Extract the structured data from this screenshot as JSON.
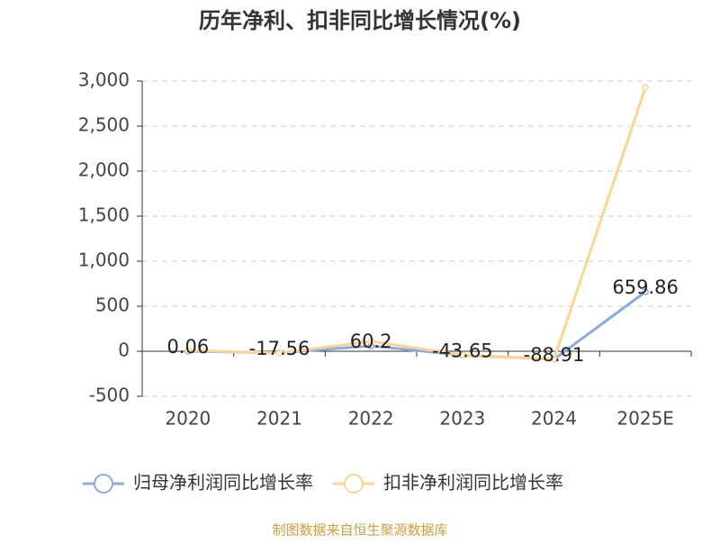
{
  "chart_data": {
    "type": "line",
    "title": "历年净利、扣非同比增长情况(%)",
    "categories": [
      "2020",
      "2021",
      "2022",
      "2023",
      "2024",
      "2025E"
    ],
    "series": [
      {
        "name": "归母净利润同比增长率",
        "color": "#8eaad8",
        "values": [
          0.06,
          -17.56,
          60.2,
          -43.65,
          -88.91,
          659.86
        ],
        "show_labels": true
      },
      {
        "name": "扣非净利润同比增长率",
        "color": "#fbd49a",
        "values": [
          10,
          -20,
          110,
          -40,
          -90,
          2930
        ],
        "show_labels": false
      }
    ],
    "ylim": [
      -500,
      3000
    ],
    "yticks": [
      {
        "value": -500,
        "label": "-500"
      },
      0,
      500,
      {
        "value": 1000,
        "label": "1,000"
      },
      {
        "value": 1500,
        "label": "1,500"
      },
      {
        "value": 2000,
        "label": "2,000"
      },
      {
        "value": 2500,
        "label": "2,500"
      },
      {
        "value": 3000,
        "label": "3,000"
      }
    ],
    "grid": true,
    "legend": "bottom",
    "footer": "制图数据来自恒生聚源数据库"
  }
}
